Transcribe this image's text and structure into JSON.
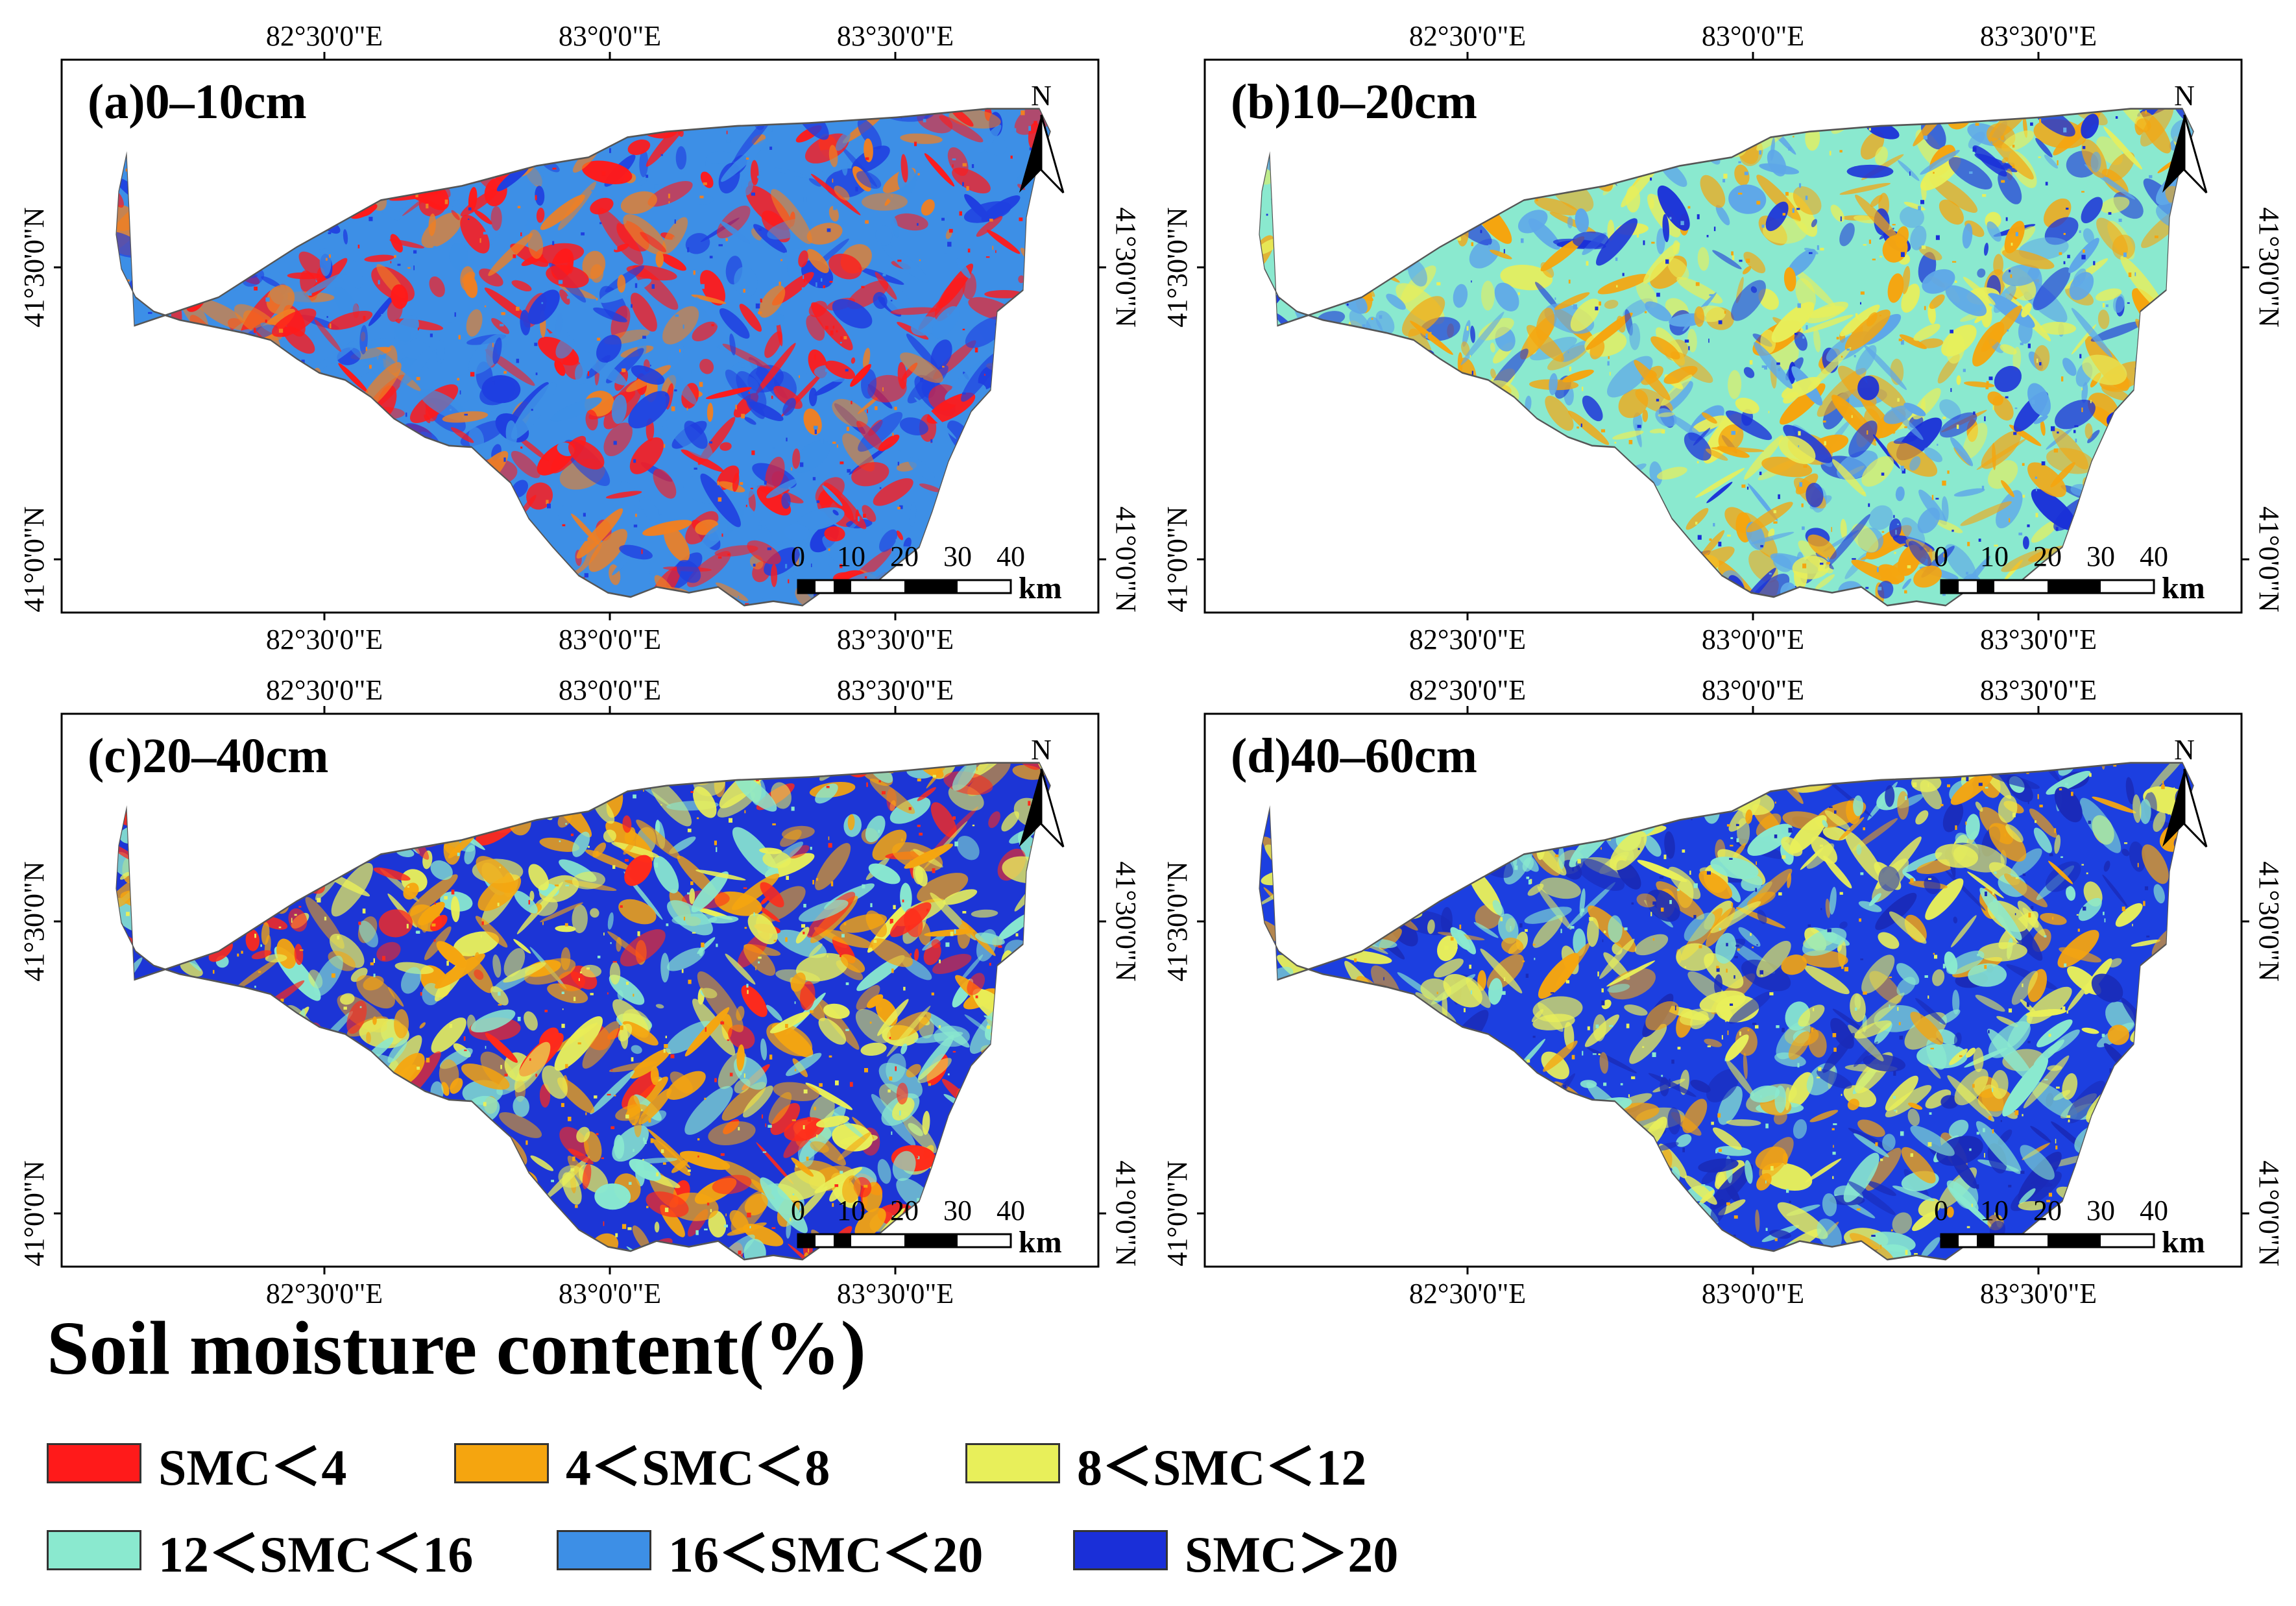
{
  "panels": [
    {
      "label": "(a)0–10cm",
      "base": "#3d8fe6",
      "colors": [
        "#ff1a1a",
        "#3d8fe6",
        "#1f3fe0",
        "#f07f22"
      ]
    },
    {
      "label": "(b)10–20cm",
      "base": "#8ae9cf",
      "colors": [
        "#f5a50f",
        "#5ea7e8",
        "#e8ef5a",
        "#1a2fd8"
      ]
    },
    {
      "label": "(c)20–40cm",
      "base": "#1c35d6",
      "colors": [
        "#f5a50f",
        "#e8ef5a",
        "#8ae9cf",
        "#ff2a1a"
      ]
    },
    {
      "label": "(d)40–60cm",
      "base": "#1c3fe0",
      "colors": [
        "#e8ef5a",
        "#8ae9cf",
        "#1a2bb8",
        "#f5a50f"
      ]
    }
  ],
  "axes": {
    "top_ticks": [
      "82°30'0\"E",
      "83°0'0\"E",
      "83°30'0\"E"
    ],
    "bottom_ticks": [
      "82°30'0\"E",
      "83°0'0\"E",
      "83°30'0\"E"
    ],
    "left_ticks": [
      "41°30'0\"N",
      "41°0'0\"N"
    ],
    "right_ticks": [
      "41°30'0\"N",
      "41°0'0\"N"
    ]
  },
  "north_label": "N",
  "scale_bar": {
    "labels": [
      "0",
      "10",
      "20",
      "30",
      "40"
    ],
    "unit": "km"
  },
  "legend": {
    "title": "Soil moisture content(%)",
    "items": [
      {
        "label": "SMC＜4",
        "color": "#ff1a1a"
      },
      {
        "label": "4＜SMC＜8",
        "color": "#f5a50f"
      },
      {
        "label": "8＜SMC＜12",
        "color": "#e8ef5a"
      },
      {
        "label": "12＜SMC＜16",
        "color": "#8ae9cf"
      },
      {
        "label": "16＜SMC＜20",
        "color": "#3d8fe6"
      },
      {
        "label": "SMC＞20",
        "color": "#1a2fd8"
      }
    ]
  }
}
